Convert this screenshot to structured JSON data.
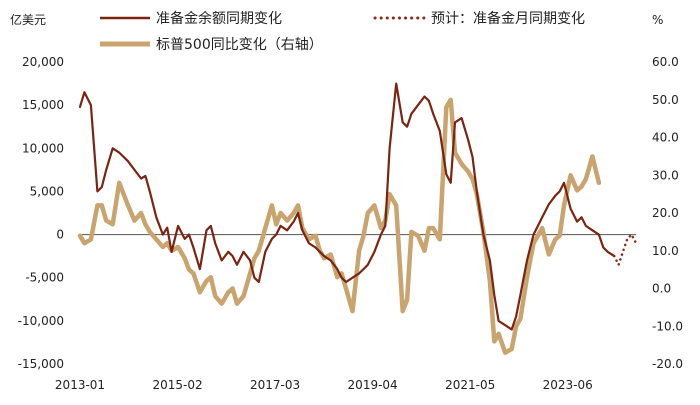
{
  "chart_data": {
    "type": "line",
    "left_axis_unit": "亿美元",
    "right_axis_unit": "%",
    "x_tick_labels": [
      "2013-01",
      "2015-02",
      "2017-03",
      "2019-04",
      "2021-05",
      "2023-06"
    ],
    "x_range": [
      2013.0,
      2025.75
    ],
    "y_left": {
      "ticks": [
        20000,
        15000,
        10000,
        5000,
        0,
        -5000,
        -10000,
        -15000
      ],
      "tick_labels": [
        "20,000",
        "15,000",
        "10,000",
        "5,000",
        "0",
        "-5,000",
        "-10,000",
        "-15,000"
      ],
      "range": [
        -15000,
        20000
      ]
    },
    "y_right": {
      "ticks": [
        60,
        50,
        40,
        30,
        20,
        10,
        0,
        -10,
        -20
      ],
      "tick_labels": [
        "60.0",
        "50.0",
        "40.0",
        "30.0",
        "20.0",
        "10.0",
        "0.0",
        "-10.0",
        "-20.0"
      ],
      "range": [
        -20,
        60
      ]
    },
    "legend_position": "top",
    "colors": {
      "reserves": "#7b2412",
      "sp500": "#c9a46e",
      "forecast": "#8b2a14",
      "axis": "#555555"
    },
    "series": [
      {
        "name": "准备金余额同期变化",
        "axis": "left",
        "style": "solid",
        "color": "#7b2412",
        "x": [
          2013.0,
          2013.1,
          2013.25,
          2013.4,
          2013.5,
          2013.6,
          2013.75,
          2013.9,
          2014.0,
          2014.1,
          2014.25,
          2014.4,
          2014.5,
          2014.6,
          2014.75,
          2014.9,
          2015.0,
          2015.1,
          2015.25,
          2015.4,
          2015.5,
          2015.6,
          2015.75,
          2015.9,
          2016.0,
          2016.1,
          2016.25,
          2016.4,
          2016.5,
          2016.6,
          2016.75,
          2016.9,
          2017.0,
          2017.1,
          2017.25,
          2017.4,
          2017.5,
          2017.6,
          2017.75,
          2017.9,
          2018.0,
          2018.1,
          2018.25,
          2018.4,
          2018.5,
          2018.6,
          2018.75,
          2018.9,
          2019.0,
          2019.1,
          2019.25,
          2019.4,
          2019.5,
          2019.6,
          2019.75,
          2019.9,
          2020.0,
          2020.1,
          2020.25,
          2020.4,
          2020.5,
          2020.6,
          2020.75,
          2020.9,
          2021.0,
          2021.1,
          2021.25,
          2021.4,
          2021.5,
          2021.6,
          2021.75,
          2021.9,
          2022.0,
          2022.1,
          2022.25,
          2022.4,
          2022.5,
          2022.6,
          2022.75,
          2022.9,
          2023.0,
          2023.1,
          2023.25,
          2023.4,
          2023.5,
          2023.6,
          2023.75,
          2023.9,
          2024.0,
          2024.1,
          2024.25,
          2024.4,
          2024.5,
          2024.6,
          2024.75,
          2024.9,
          2025.0,
          2025.1,
          2025.25
        ],
        "y": [
          14800,
          16500,
          15000,
          5000,
          5500,
          7500,
          10000,
          9500,
          9000,
          8500,
          7500,
          6500,
          6800,
          5000,
          2000,
          0,
          800,
          -2000,
          1000,
          -500,
          0,
          -1500,
          -4000,
          500,
          1000,
          -1000,
          -3000,
          -2000,
          -2500,
          -3500,
          -2000,
          -3000,
          -5000,
          -5500,
          -2000,
          -500,
          0,
          1000,
          500,
          1500,
          2500,
          500,
          -1000,
          -1500,
          -2000,
          -2500,
          -3000,
          -4000,
          -5000,
          -5500,
          -5000,
          -4500,
          -4000,
          -3500,
          -2000,
          0,
          1000,
          10000,
          17500,
          13000,
          12500,
          14000,
          15000,
          16000,
          15500,
          14000,
          12000,
          7000,
          6000,
          13000,
          13500,
          11000,
          9000,
          5000,
          0,
          -3000,
          -7000,
          -10000,
          -10500,
          -11000,
          -9500,
          -7000,
          -3000,
          0,
          1000,
          2000,
          3500,
          4500,
          5000,
          6000,
          3000,
          1500,
          2000,
          1000,
          500,
          0,
          -1500,
          -2000,
          -2500
        ]
      },
      {
        "name": "预计：准备金月同期变化",
        "axis": "left",
        "style": "dotted",
        "color": "#8b2a14",
        "x": [
          2025.25,
          2025.35,
          2025.45,
          2025.55,
          2025.65,
          2025.75
        ],
        "y": [
          -2500,
          -3500,
          -2000,
          -500,
          0,
          -1000
        ]
      },
      {
        "name": "标普500同比变化（右轴）",
        "axis": "right",
        "style": "solid",
        "color": "#c9a46e",
        "x": [
          2013.0,
          2013.1,
          2013.25,
          2013.4,
          2013.5,
          2013.6,
          2013.75,
          2013.9,
          2014.0,
          2014.1,
          2014.25,
          2014.4,
          2014.5,
          2014.6,
          2014.75,
          2014.9,
          2015.0,
          2015.1,
          2015.25,
          2015.4,
          2015.5,
          2015.6,
          2015.75,
          2015.9,
          2016.0,
          2016.1,
          2016.25,
          2016.4,
          2016.5,
          2016.6,
          2016.75,
          2016.9,
          2017.0,
          2017.1,
          2017.25,
          2017.4,
          2017.5,
          2017.6,
          2017.75,
          2017.9,
          2018.0,
          2018.1,
          2018.25,
          2018.4,
          2018.5,
          2018.6,
          2018.75,
          2018.9,
          2019.0,
          2019.1,
          2019.25,
          2019.4,
          2019.5,
          2019.6,
          2019.75,
          2019.9,
          2020.0,
          2020.1,
          2020.25,
          2020.4,
          2020.5,
          2020.6,
          2020.75,
          2020.9,
          2021.0,
          2021.1,
          2021.25,
          2021.4,
          2021.5,
          2021.6,
          2021.75,
          2021.9,
          2022.0,
          2022.1,
          2022.25,
          2022.4,
          2022.5,
          2022.6,
          2022.75,
          2022.9,
          2023.0,
          2023.1,
          2023.25,
          2023.4,
          2023.5,
          2023.6,
          2023.75,
          2023.9,
          2024.0,
          2024.1,
          2024.25,
          2024.4,
          2024.5,
          2024.6,
          2024.75,
          2024.9
        ],
        "y": [
          14,
          12,
          13,
          22,
          22,
          18,
          17,
          28,
          25,
          22,
          18,
          20,
          17,
          15,
          13,
          11,
          12,
          10,
          11,
          8,
          5,
          4,
          -1,
          2,
          3,
          -2,
          -4,
          -1,
          0,
          -4,
          -2,
          4,
          8,
          10,
          16,
          22,
          17,
          20,
          18,
          20,
          22,
          16,
          13,
          14,
          10,
          8,
          9,
          3,
          4,
          0,
          -6,
          10,
          14,
          20,
          22,
          16,
          18,
          25,
          22,
          -6,
          -3,
          15,
          14,
          10,
          16,
          16,
          13,
          48,
          50,
          36,
          33,
          31,
          29,
          25,
          15,
          2,
          -14,
          -12,
          -17,
          -16,
          -10,
          -8,
          3,
          12,
          14,
          16,
          9,
          13,
          14,
          22,
          30,
          26,
          27,
          29,
          35,
          28
        ]
      }
    ]
  }
}
